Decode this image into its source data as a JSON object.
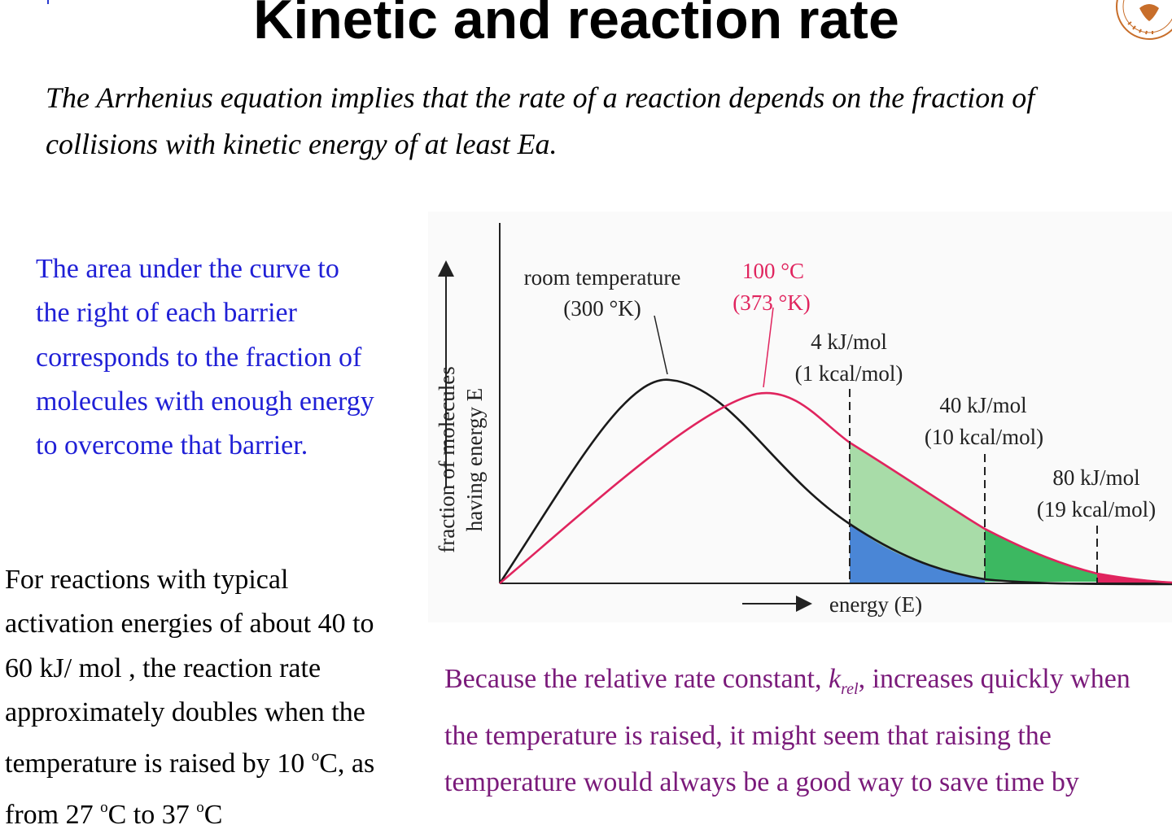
{
  "slide": {
    "title": "Kinetic and reaction rate",
    "intro": "The Arrhenius equation implies that the rate of a reaction depends on the fraction of collisions with kinetic energy of at least Ea."
  },
  "notes": {
    "blue": "The area under the curve to the right of each barrier corresponds to the fraction of molecules with enough energy to overcome that barrier.",
    "black_parts": [
      "For reactions with typical activation energies of about 40 to 60 kJ/ mol , the reaction rate approximately doubles when the temperature is raised by 10 ",
      "o",
      "C, as from 27 ",
      "o",
      "C to 37 ",
      "o",
      "C"
    ],
    "purple_before": "Because the relative rate constant, ",
    "purple_k": "k",
    "purple_sub": "rel",
    "purple_after": ", increases quickly when the temperature is raised, it might seem that raising the temperature would always be a good way to save time by making reactions go faster."
  },
  "figure": {
    "y_axis_label_1": "fraction of molecules",
    "y_axis_label_2": "having energy E",
    "x_axis_label": "energy (E)",
    "curve_room_label_1": "room temperature",
    "curve_room_label_2": "(300 °K)",
    "curve_hot_label_1": "100 °C",
    "curve_hot_label_2": "(373 °K)",
    "barrier_1_label_1": "4 kJ/mol",
    "barrier_1_label_2": "(1 kcal/mol)",
    "barrier_2_label_1": "40 kJ/mol",
    "barrier_2_label_2": "(10 kcal/mol)",
    "barrier_3_label_1": "80 kJ/mol",
    "barrier_3_label_2": "(19 kcal/mol)",
    "colors": {
      "room_curve": "#1a1a1a",
      "hot_curve": "#e0245e",
      "area_light_green": "#a8dca8",
      "area_blue": "#4a86d6",
      "area_green": "#3cb861",
      "area_red": "#e0245e"
    }
  }
}
